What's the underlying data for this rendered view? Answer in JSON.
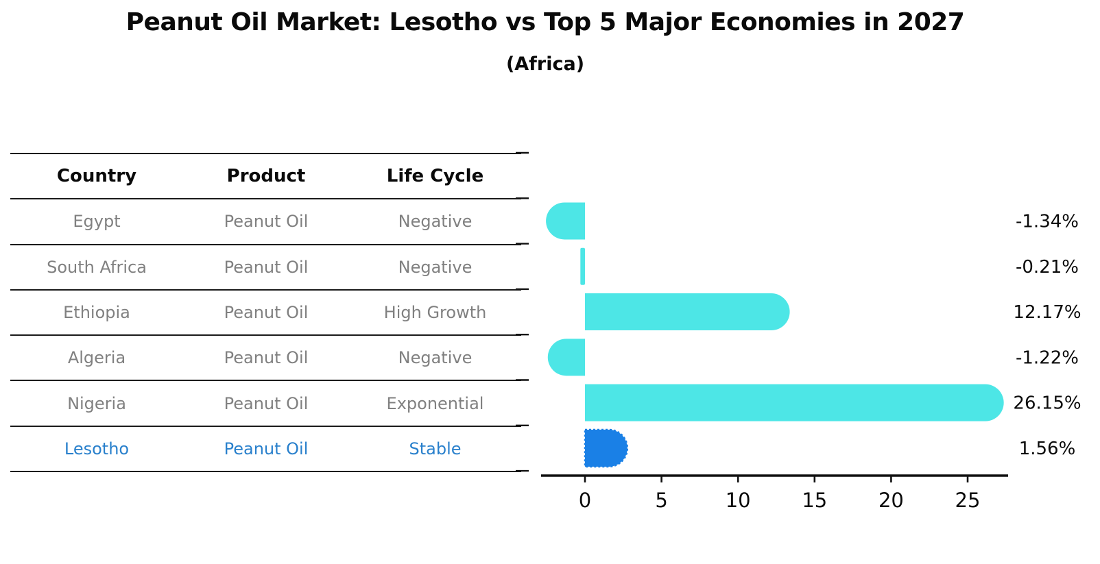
{
  "title": "Peanut Oil Market: Lesotho vs Top 5 Major Economies in 2027",
  "subtitle": "(Africa)",
  "table": {
    "columns": [
      "Country",
      "Product",
      "Life Cycle"
    ],
    "rows": [
      {
        "country": "Egypt",
        "product": "Peanut Oil",
        "life_cycle": "Negative",
        "highlighted": false
      },
      {
        "country": "South Africa",
        "product": "Peanut Oil",
        "life_cycle": "Negative",
        "highlighted": false
      },
      {
        "country": "Ethiopia",
        "product": "Peanut Oil",
        "life_cycle": "High Growth",
        "highlighted": false
      },
      {
        "country": "Algeria",
        "product": "Peanut Oil",
        "life_cycle": "Negative",
        "highlighted": false
      },
      {
        "country": "Nigeria",
        "product": "Peanut Oil",
        "life_cycle": "Exponential",
        "highlighted": false
      },
      {
        "country": "Lesotho",
        "product": "Peanut Oil",
        "life_cycle": "Stable",
        "highlighted": true
      }
    ]
  },
  "chart_data": {
    "type": "bar",
    "orientation": "horizontal",
    "title": "Peanut Oil Market: Lesotho vs Top 5 Major Economies in 2027",
    "subtitle": "(Africa)",
    "categories": [
      "Egypt",
      "South Africa",
      "Ethiopia",
      "Algeria",
      "Nigeria",
      "Lesotho"
    ],
    "values": [
      -1.34,
      -0.21,
      12.17,
      -1.22,
      26.15,
      1.56
    ],
    "value_labels": [
      "-1.34%",
      "-0.21%",
      "12.17%",
      "-1.22%",
      "26.15%",
      "1.56%"
    ],
    "unit": "%",
    "xticks": [
      0,
      5,
      10,
      15,
      20,
      25
    ],
    "xlim": [
      -2.9,
      27.6
    ],
    "grid": false,
    "legend": "none",
    "highlight_index": 5,
    "highlight_style": "dashed-outline",
    "colors": {
      "bar": "#4DE6E6",
      "highlight_bar": "#1A80E6",
      "highlight_text": "#2980CC",
      "row_text": "#808080",
      "header_text": "#0a0a0a",
      "axis": "#111111",
      "background": "#ffffff"
    }
  }
}
